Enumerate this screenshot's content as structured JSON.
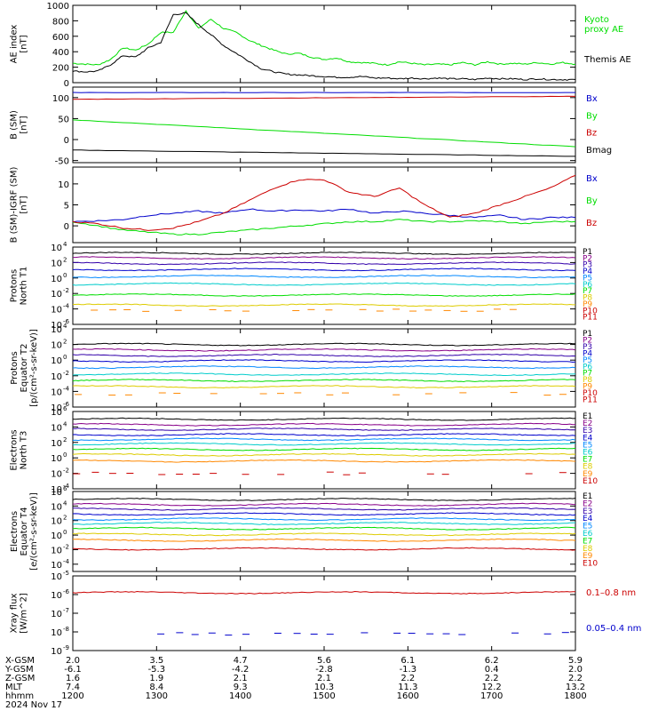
{
  "colors": {
    "axis": "#000000",
    "black": "#000000",
    "green": "#00dd00",
    "red": "#cc0000",
    "blue": "#0000cc"
  },
  "chart_data": [
    {
      "type": "line",
      "ylabel": [
        "AE index",
        "[nT]"
      ],
      "ylim": [
        0,
        1000
      ],
      "yticks": [
        "0",
        "200",
        "400",
        "600",
        "800",
        "1000"
      ],
      "series": [
        {
          "name": "Kyoto",
          "name2": "proxy AE",
          "color": "#00dd00",
          "x": [
            0,
            0.15,
            0.3,
            0.45,
            0.6,
            0.75,
            0.9,
            1.05,
            1.2,
            1.35,
            1.5,
            1.65,
            1.8,
            1.95,
            2.1,
            2.25,
            2.4,
            2.55,
            2.7,
            2.85,
            3.0,
            3.15,
            3.3,
            3.45,
            3.6,
            3.75,
            3.9,
            4.05,
            4.2,
            4.35,
            4.5,
            4.65,
            4.8,
            4.95,
            5.1,
            5.25,
            5.4,
            5.55,
            5.7,
            5.85,
            6.0
          ],
          "y": [
            250,
            240,
            230,
            300,
            450,
            420,
            500,
            650,
            650,
            930,
            700,
            820,
            700,
            650,
            550,
            480,
            420,
            370,
            380,
            330,
            300,
            320,
            270,
            260,
            250,
            230,
            270,
            250,
            230,
            240,
            230,
            260,
            230,
            270,
            240,
            250,
            240,
            260,
            240,
            260,
            240
          ]
        },
        {
          "name": "Themis AE",
          "color": "#000000",
          "x": [
            0,
            0.15,
            0.3,
            0.45,
            0.6,
            0.75,
            0.9,
            1.05,
            1.2,
            1.35,
            1.5,
            1.65,
            1.8,
            1.95,
            2.1,
            2.25,
            2.4,
            2.55,
            2.7,
            2.85,
            3.0,
            3.15,
            3.3,
            3.45,
            3.6,
            3.75,
            3.9,
            4.05,
            4.2,
            4.35,
            4.5,
            4.65,
            4.8,
            4.95,
            5.1,
            5.25,
            5.4,
            5.55,
            5.7,
            5.85,
            6.0
          ],
          "y": [
            150,
            140,
            150,
            230,
            350,
            330,
            450,
            520,
            880,
            900,
            750,
            620,
            480,
            380,
            280,
            180,
            140,
            110,
            100,
            90,
            80,
            70,
            70,
            80,
            60,
            60,
            50,
            60,
            50,
            60,
            50,
            50,
            40,
            60,
            50,
            50,
            40,
            50,
            40,
            40,
            40
          ]
        }
      ]
    },
    {
      "type": "line",
      "ylabel": [
        "B  (SM)",
        "[nT]"
      ],
      "ylabel_sub": "t",
      "ylim": [
        -55,
        125
      ],
      "yticks": [
        "-50",
        "0",
        "50",
        "100"
      ],
      "ytick_values": [
        -50,
        0,
        50,
        100
      ],
      "series": [
        {
          "name": "Bx",
          "color": "#0000cc",
          "x": [
            0,
            6
          ],
          "y": [
            112,
            112
          ]
        },
        {
          "name": "By",
          "color": "#00dd00",
          "x": [
            0,
            6
          ],
          "y": [
            47,
            -17
          ]
        },
        {
          "name": "Bz",
          "color": "#cc0000",
          "x": [
            0,
            6
          ],
          "y": [
            96,
            103
          ]
        },
        {
          "name": "Bmag",
          "color": "#000000",
          "x": [
            0,
            6
          ],
          "y": [
            -25,
            -40
          ]
        }
      ]
    },
    {
      "type": "line",
      "ylabel": [
        "B (SM)-IGRF (SM)",
        "[nT]"
      ],
      "ylim": [
        -4,
        14
      ],
      "yticks": [
        "0",
        "5",
        "10"
      ],
      "ytick_values": [
        0,
        5,
        10
      ],
      "series": [
        {
          "name": "Bx",
          "color": "#0000cc",
          "x": [
            0,
            0.3,
            0.6,
            0.9,
            1.2,
            1.5,
            1.8,
            2.1,
            2.4,
            2.7,
            3.0,
            3.3,
            3.6,
            3.9,
            4.2,
            4.5,
            4.8,
            5.1,
            5.4,
            5.7,
            6.0
          ],
          "y": [
            1,
            1.2,
            1.5,
            2.5,
            3,
            3.5,
            3,
            4,
            3.5,
            3.8,
            3.5,
            4,
            3,
            3.5,
            3,
            2.5,
            2,
            2.5,
            1.5,
            2,
            2
          ]
        },
        {
          "name": "By",
          "color": "#00dd00",
          "x": [
            0,
            0.3,
            0.6,
            0.9,
            1.2,
            1.5,
            1.8,
            2.1,
            2.4,
            2.7,
            3.0,
            3.3,
            3.6,
            3.9,
            4.2,
            4.5,
            4.8,
            5.1,
            5.4,
            5.7,
            6.0
          ],
          "y": [
            1,
            0,
            -1,
            -1.5,
            -2,
            -2,
            -1.5,
            -1,
            -0.5,
            0,
            0.5,
            1,
            1,
            1.5,
            1,
            1,
            1.2,
            1,
            0.5,
            1,
            1
          ]
        },
        {
          "name": "Bz",
          "color": "#cc0000",
          "x": [
            0,
            0.3,
            0.6,
            0.9,
            1.2,
            1.5,
            1.8,
            2.1,
            2.4,
            2.7,
            3.0,
            3.3,
            3.6,
            3.9,
            4.2,
            4.5,
            4.8,
            5.1,
            5.4,
            5.7,
            6.0
          ],
          "y": [
            1,
            0.5,
            -0.5,
            -1,
            -0.5,
            1,
            3,
            6,
            9,
            11,
            11,
            8,
            7,
            9,
            5,
            2,
            3,
            5,
            7,
            9,
            12
          ]
        }
      ]
    },
    {
      "type": "line",
      "ylabel": [
        "Protons",
        "North T1"
      ],
      "ylim": [
        -6,
        4
      ],
      "yticks": [
        "10",
        "10",
        "10",
        "10",
        "10",
        "10"
      ],
      "ytick_exponents": [
        "-6",
        "-4",
        "-2",
        "0",
        "2",
        "4"
      ],
      "log_scale": true,
      "channels": [
        "P1",
        "P2",
        "P3",
        "P4",
        "P5",
        "P6",
        "P7",
        "P8",
        "P9",
        "P10",
        "P11"
      ],
      "series": [
        {
          "name": "P1",
          "color": "#000000",
          "level": 3.2
        },
        {
          "name": "P2",
          "color": "#880088",
          "level": 2.6
        },
        {
          "name": "P3",
          "color": "#3300aa",
          "level": 1.9
        },
        {
          "name": "P4",
          "color": "#0000cc",
          "level": 1.1
        },
        {
          "name": "P5",
          "color": "#0088ff",
          "level": 0.2
        },
        {
          "name": "P6",
          "color": "#00cccc",
          "level": -0.8
        },
        {
          "name": "P7",
          "color": "#00dd00",
          "level": -2.2
        },
        {
          "name": "P8",
          "color": "#ddcc00",
          "level": -3.5
        },
        {
          "name": "P9",
          "color": "#ff8800",
          "level": -4.2
        }
      ]
    },
    {
      "type": "line",
      "ylabel": [
        "Protons",
        "Equator T2",
        "[p/(cm²-s-sr-keV)]"
      ],
      "ylim": [
        -6,
        4
      ],
      "yticks": [
        "10",
        "10",
        "10",
        "10",
        "10",
        "10"
      ],
      "ytick_exponents": [
        "-6",
        "-4",
        "-2",
        "0",
        "2",
        "4"
      ],
      "log_scale": true,
      "channels": [
        "P1",
        "P2",
        "P3",
        "P4",
        "P5",
        "P6",
        "P7",
        "P8",
        "P9",
        "P10",
        "P11"
      ],
      "series": [
        {
          "name": "P1",
          "color": "#000000",
          "level": 2.0
        },
        {
          "name": "P2",
          "color": "#880088",
          "level": 1.3
        },
        {
          "name": "P3",
          "color": "#3300aa",
          "level": 0.6
        },
        {
          "name": "P4",
          "color": "#0000cc",
          "level": -0.1
        },
        {
          "name": "P5",
          "color": "#0088ff",
          "level": -0.9
        },
        {
          "name": "P6",
          "color": "#00cccc",
          "level": -1.8
        },
        {
          "name": "P7",
          "color": "#00dd00",
          "level": -2.6
        },
        {
          "name": "P8",
          "color": "#ddcc00",
          "level": -3.4
        },
        {
          "name": "P9",
          "color": "#ff8800",
          "level": -4.3
        }
      ]
    },
    {
      "type": "line",
      "ylabel": [
        "Electrons",
        "North T3"
      ],
      "ylim": [
        -4,
        6
      ],
      "yticks": [
        "10",
        "10",
        "10",
        "10",
        "10",
        "10"
      ],
      "ytick_exponents": [
        "-4",
        "-2",
        "0",
        "2",
        "4",
        "6"
      ],
      "log_scale": true,
      "channels": [
        "E1",
        "E2",
        "E3",
        "E4",
        "E5",
        "E6",
        "E7",
        "E8",
        "E9",
        "E10"
      ],
      "series": [
        {
          "name": "E1",
          "color": "#000000",
          "level": 5.0
        },
        {
          "name": "E2",
          "color": "#880088",
          "level": 4.3
        },
        {
          "name": "E3",
          "color": "#3300aa",
          "level": 3.7
        },
        {
          "name": "E4",
          "color": "#0000cc",
          "level": 3.0
        },
        {
          "name": "E5",
          "color": "#0088ff",
          "level": 2.4
        },
        {
          "name": "E6",
          "color": "#00cccc",
          "level": 1.8
        },
        {
          "name": "E7",
          "color": "#00dd00",
          "level": 1.1
        },
        {
          "name": "E8",
          "color": "#ddcc00",
          "level": 0.4
        },
        {
          "name": "E9",
          "color": "#ff8800",
          "level": -0.4
        },
        {
          "name": "E10",
          "color": "#cc0000",
          "level": -2.0
        }
      ]
    },
    {
      "type": "line",
      "ylabel": [
        "Electrons",
        "Equator T4",
        "[e/(cm²-s-sr-keV)]"
      ],
      "ylim": [
        -5,
        6
      ],
      "yticks": [
        "10",
        "10",
        "10",
        "10",
        "10",
        "10"
      ],
      "ytick_exponents": [
        "-4",
        "-2",
        "0",
        "2",
        "4",
        "6"
      ],
      "log_scale": true,
      "channels": [
        "E1",
        "E2",
        "E3",
        "E4",
        "E5",
        "E6",
        "E7",
        "E8",
        "E9",
        "E10"
      ],
      "series": [
        {
          "name": "E1",
          "color": "#000000",
          "level": 4.9
        },
        {
          "name": "E2",
          "color": "#880088",
          "level": 4.2
        },
        {
          "name": "E3",
          "color": "#3300aa",
          "level": 3.6
        },
        {
          "name": "E4",
          "color": "#0000cc",
          "level": 2.9
        },
        {
          "name": "E5",
          "color": "#0088ff",
          "level": 2.2
        },
        {
          "name": "E6",
          "color": "#00cccc",
          "level": 1.6
        },
        {
          "name": "E7",
          "color": "#00dd00",
          "level": 0.9
        },
        {
          "name": "E8",
          "color": "#ddcc00",
          "level": 0.1
        },
        {
          "name": "E9",
          "color": "#ff8800",
          "level": -0.7
        },
        {
          "name": "E10",
          "color": "#cc0000",
          "level": -1.9
        }
      ]
    },
    {
      "type": "line",
      "ylabel": [
        "Xray flux",
        "[W/m^2]"
      ],
      "ylim": [
        -9,
        -5
      ],
      "yticks": [
        "10",
        "10",
        "10",
        "10",
        "10"
      ],
      "ytick_exponents": [
        "-9",
        "-8",
        "-7",
        "-6",
        "-5"
      ],
      "log_scale": true,
      "series": [
        {
          "name": "0.1–0.8 nm",
          "color": "#cc0000",
          "level": -5.9
        },
        {
          "name": "0.05–0.4 nm",
          "color": "#0000cc",
          "level": -8.1
        }
      ]
    }
  ],
  "x_axis": {
    "row_labels": [
      "X-GSM",
      "Y-GSM",
      "Z-GSM",
      "MLT",
      "hhmm",
      "2024 Nov 17"
    ],
    "columns": [
      {
        "x": 0,
        "vals": [
          "2.0",
          "-6.1",
          "1.6",
          "7.4",
          "1200"
        ]
      },
      {
        "x": 1,
        "vals": [
          "3.5",
          "-5.3",
          "1.9",
          "8.4",
          "1300"
        ]
      },
      {
        "x": 2,
        "vals": [
          "4.7",
          "-4.2",
          "2.1",
          "9.3",
          "1400"
        ]
      },
      {
        "x": 3,
        "vals": [
          "5.6",
          "-2.8",
          "2.1",
          "10.3",
          "1500"
        ]
      },
      {
        "x": 4,
        "vals": [
          "6.1",
          "-1.3",
          "2.2",
          "11.3",
          "1600"
        ]
      },
      {
        "x": 5,
        "vals": [
          "6.2",
          "0.4",
          "2.2",
          "12.2",
          "1700"
        ]
      },
      {
        "x": 6,
        "vals": [
          "5.9",
          "2.0",
          "2.2",
          "13.2",
          "1800"
        ]
      }
    ]
  }
}
